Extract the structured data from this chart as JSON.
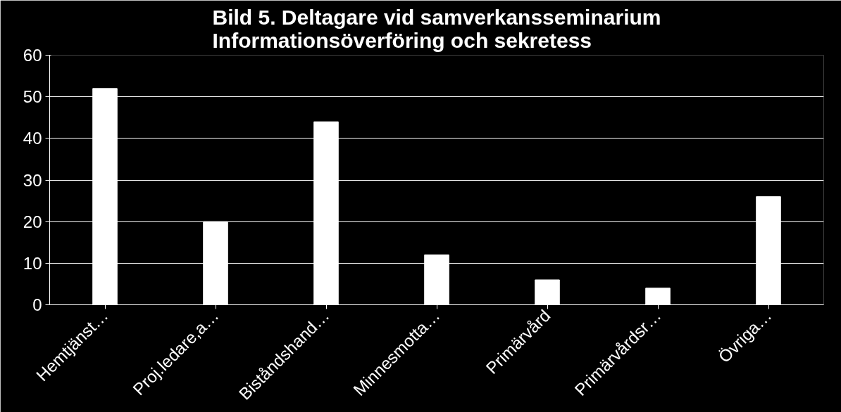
{
  "chart_data": {
    "type": "bar",
    "title": "Bild 5. Deltagare vid samverkansseminarium\nInformationsöverföring och sekretess",
    "categories": [
      "Hemtjänst…",
      "Proj.ledare,a…",
      "Biståndshand…",
      "Minnesmotta…",
      "Primärvård",
      "Primärvårdsr…",
      "Övriga…"
    ],
    "values": [
      52,
      20,
      44,
      12,
      6,
      4,
      26
    ],
    "color": "#ffffff",
    "ylim": [
      0,
      60
    ],
    "yticks": [
      0,
      10,
      20,
      30,
      40,
      50,
      60
    ],
    "grid": "y"
  }
}
